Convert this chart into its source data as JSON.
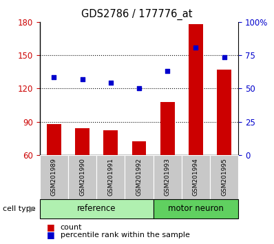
{
  "title": "GDS2786 / 177776_at",
  "samples": [
    "GSM201989",
    "GSM201990",
    "GSM201991",
    "GSM201992",
    "GSM201993",
    "GSM201994",
    "GSM201995"
  ],
  "counts": [
    88,
    84,
    82,
    72,
    108,
    178,
    137
  ],
  "percentile_ranks": [
    130,
    128,
    125,
    120,
    136,
    157,
    148
  ],
  "ylim_left": [
    60,
    180
  ],
  "ylim_right": [
    0,
    100
  ],
  "yticks_left": [
    60,
    90,
    120,
    150,
    180
  ],
  "yticks_right": [
    0,
    25,
    50,
    75,
    100
  ],
  "ytick_labels_right": [
    "0",
    "25",
    "50",
    "75",
    "100%"
  ],
  "bar_color": "#CC0000",
  "dot_color": "#0000CC",
  "tick_color_left": "#CC0000",
  "tick_color_right": "#0000CC",
  "bar_width": 0.5,
  "legend_count_label": "count",
  "legend_pct_label": "percentile rank within the sample",
  "cell_type_label": "cell type",
  "grid_color": "black",
  "background_plot": "#ffffff",
  "background_xtick": "#c8c8c8",
  "background_group_ref": "#b0f0b0",
  "background_group_neuron": "#60d060",
  "ref_count": 4,
  "neu_count": 3
}
